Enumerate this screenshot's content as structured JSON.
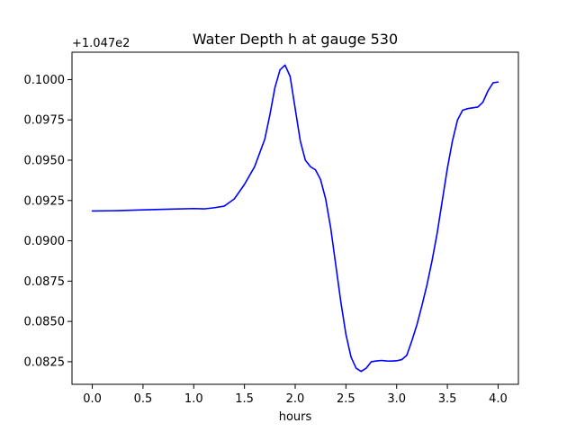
{
  "chart_data": {
    "type": "line",
    "title": "Water Depth h at gauge 530",
    "xlabel": "hours",
    "ylabel": "",
    "y_offset_label": "+1.047e2",
    "xlim": [
      -0.2,
      4.2
    ],
    "ylim": [
      0.0811,
      0.1017
    ],
    "x_ticks": [
      0.0,
      0.5,
      1.0,
      1.5,
      2.0,
      2.5,
      3.0,
      3.5,
      4.0
    ],
    "x_tick_labels": [
      "0.0",
      "0.5",
      "1.0",
      "1.5",
      "2.0",
      "2.5",
      "3.0",
      "3.5",
      "4.0"
    ],
    "y_ticks": [
      0.0825,
      0.085,
      0.0875,
      0.09,
      0.0925,
      0.095,
      0.0975,
      0.1
    ],
    "y_tick_labels": [
      "0.0825",
      "0.0850",
      "0.0875",
      "0.0900",
      "0.0925",
      "0.0950",
      "0.0975",
      "0.1000"
    ],
    "grid": false,
    "series": [
      {
        "color": "#0000ff",
        "x": [
          0.0,
          0.25,
          0.5,
          0.75,
          1.0,
          1.1,
          1.2,
          1.3,
          1.4,
          1.5,
          1.6,
          1.7,
          1.75,
          1.8,
          1.85,
          1.9,
          1.95,
          2.0,
          2.05,
          2.1,
          2.15,
          2.2,
          2.25,
          2.3,
          2.35,
          2.4,
          2.45,
          2.5,
          2.55,
          2.6,
          2.65,
          2.7,
          2.75,
          2.8,
          2.85,
          2.9,
          2.95,
          3.0,
          3.05,
          3.1,
          3.15,
          3.2,
          3.25,
          3.3,
          3.35,
          3.4,
          3.45,
          3.5,
          3.55,
          3.6,
          3.65,
          3.7,
          3.75,
          3.8,
          3.85,
          3.9,
          3.95,
          4.0
        ],
        "y": [
          0.09185,
          0.09187,
          0.09192,
          0.09196,
          0.092,
          0.09198,
          0.09205,
          0.09215,
          0.0926,
          0.0935,
          0.0946,
          0.0963,
          0.0978,
          0.0995,
          0.1006,
          0.1009,
          0.1002,
          0.0982,
          0.0962,
          0.095,
          0.0946,
          0.0944,
          0.0938,
          0.0926,
          0.0908,
          0.0885,
          0.0862,
          0.0842,
          0.0828,
          0.0821,
          0.0819,
          0.0821,
          0.0825,
          0.08255,
          0.08258,
          0.08255,
          0.08254,
          0.08256,
          0.08263,
          0.0829,
          0.0838,
          0.0848,
          0.086,
          0.0873,
          0.0888,
          0.0905,
          0.0925,
          0.0945,
          0.0962,
          0.0975,
          0.0981,
          0.0982,
          0.09825,
          0.0983,
          0.0986,
          0.0993,
          0.0998,
          0.09985
        ]
      }
    ]
  }
}
